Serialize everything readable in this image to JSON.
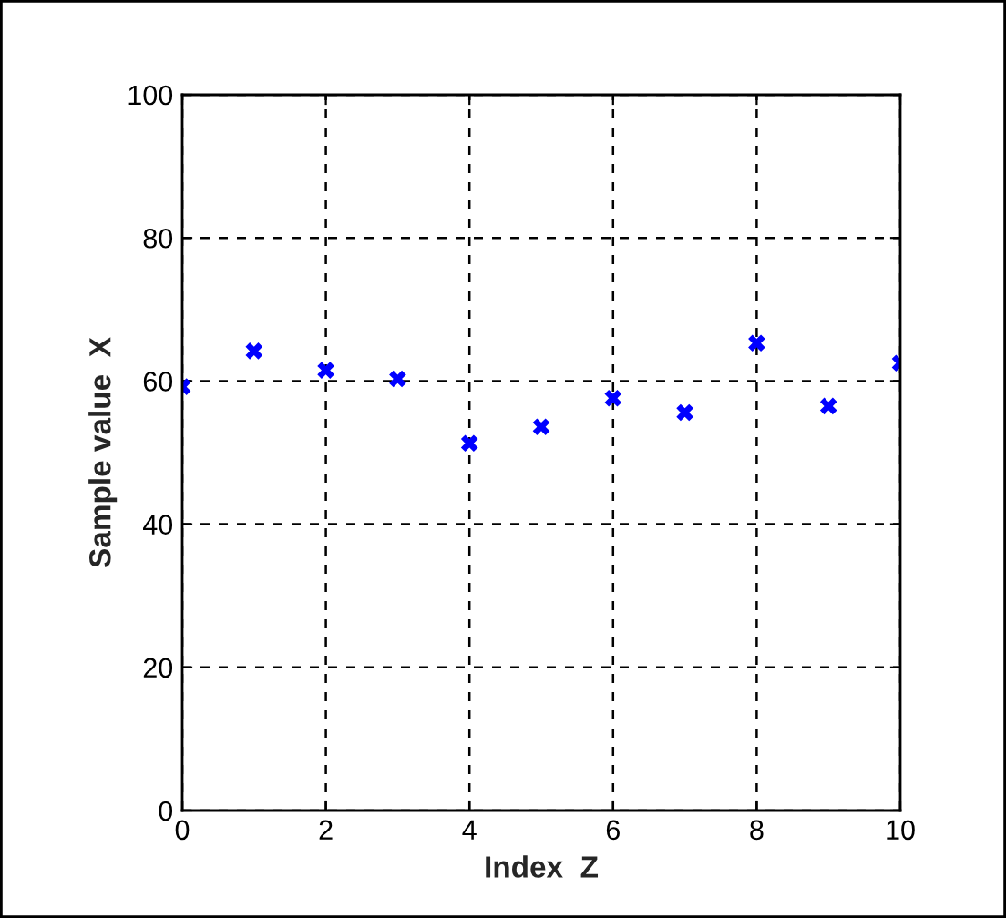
{
  "chart_data": {
    "type": "scatter",
    "xlabel": "Index  Z",
    "ylabel": "Sample value  X",
    "x": [
      0,
      1,
      2,
      3,
      4,
      5,
      6,
      7,
      8,
      9,
      10
    ],
    "series": [
      {
        "color": "#0000ff",
        "values": [
          59.2,
          64.2,
          61.5,
          60.3,
          51.3,
          53.6,
          57.6,
          55.6,
          65.3,
          56.5,
          62.5
        ]
      }
    ],
    "xlim": [
      0,
      10
    ],
    "xticks": [
      0,
      2,
      4,
      6,
      8,
      10
    ],
    "ylim": [
      0,
      100
    ],
    "yticks": [
      0,
      20,
      40,
      60,
      80,
      100
    ],
    "grid": true,
    "marker": "cross"
  }
}
